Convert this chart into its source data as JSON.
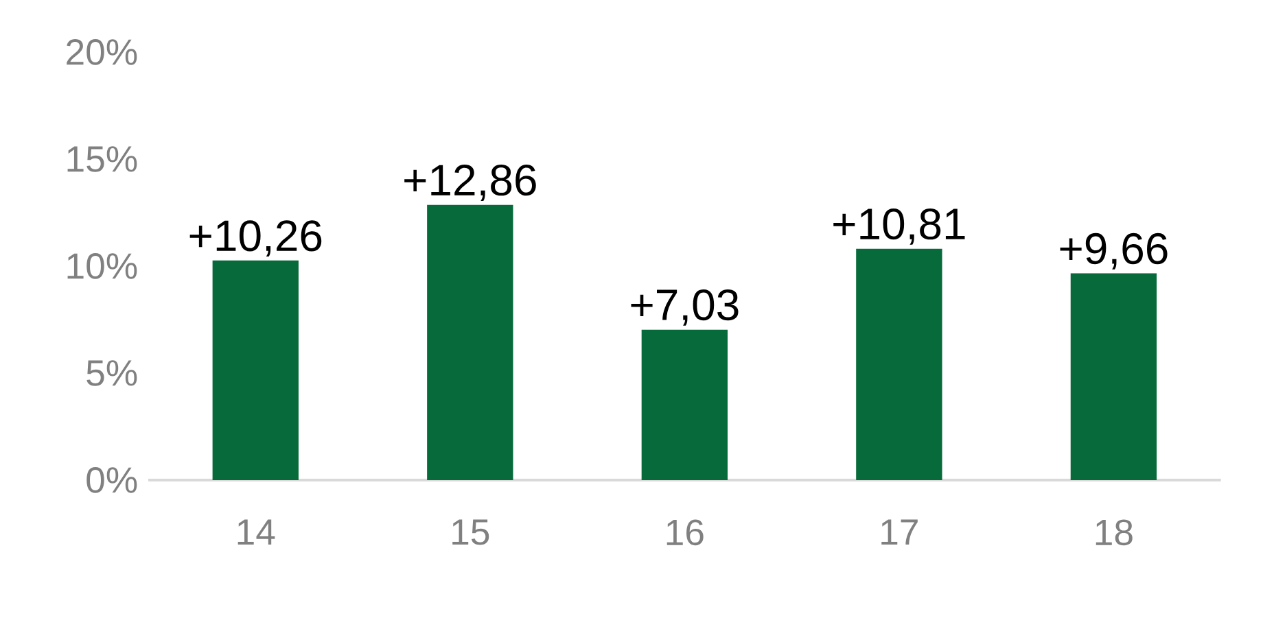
{
  "chart_data": {
    "type": "bar",
    "categories": [
      "14",
      "15",
      "16",
      "17",
      "18"
    ],
    "values": [
      10.26,
      12.86,
      7.03,
      10.81,
      9.66
    ],
    "value_labels": [
      "+10,26",
      "+12,86",
      "+7,03",
      "+10,81",
      "+9,66"
    ],
    "color": "#066a3a",
    "ylim": [
      0,
      20
    ],
    "yticks": [
      {
        "value": 0,
        "label": "0%"
      },
      {
        "value": 5,
        "label": "5%"
      },
      {
        "value": 10,
        "label": "10%"
      },
      {
        "value": 15,
        "label": "15%"
      },
      {
        "value": 20,
        "label": "20%"
      }
    ]
  }
}
